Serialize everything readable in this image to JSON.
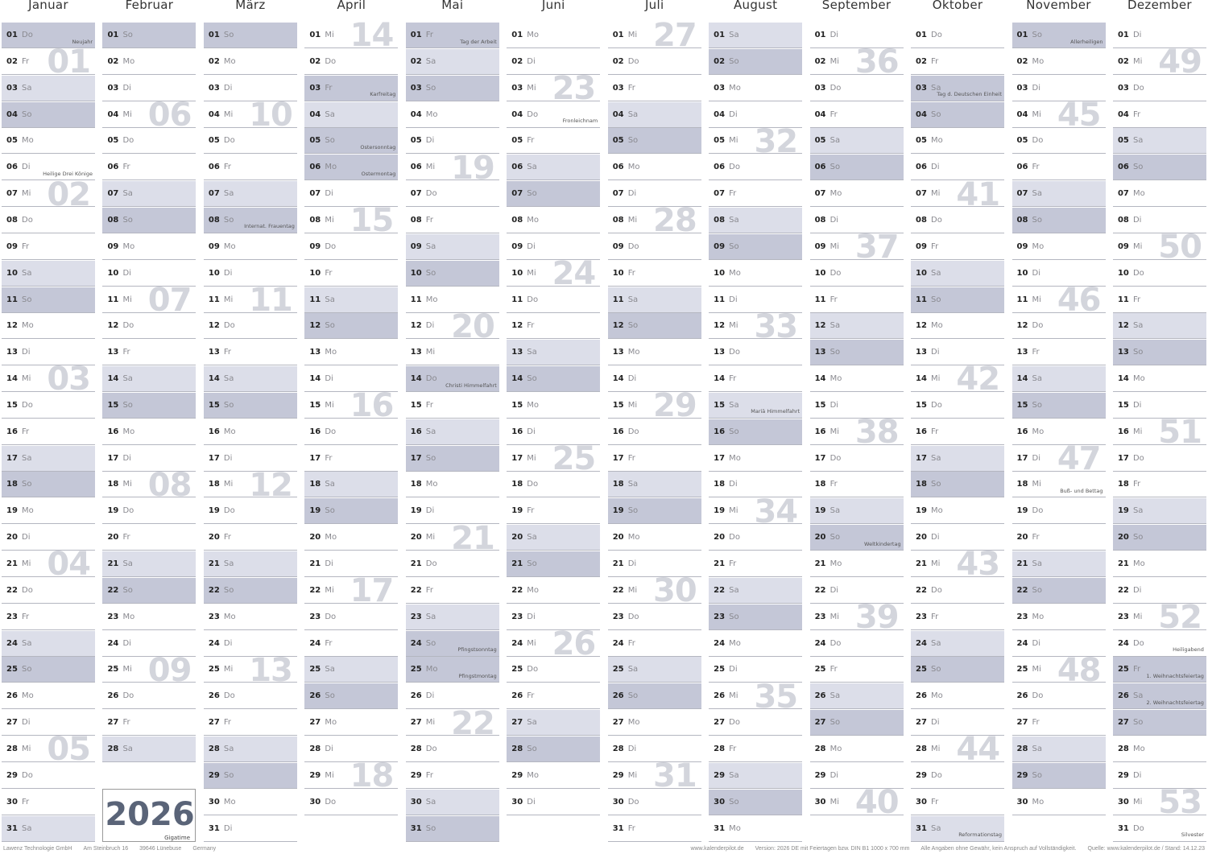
{
  "year": "2026",
  "brand": "Gigatime",
  "colors": {
    "saturday": "#dcdee9",
    "sunday_holiday": "#c4c7d7",
    "week_number": "#d3d5dc",
    "year_text": "#5a6478"
  },
  "months": [
    {
      "name": "Januar",
      "weekdays": [
        "Do",
        "Fr",
        "Sa",
        "So",
        "Mo",
        "Di",
        "Mi",
        "Do",
        "Fr",
        "Sa",
        "So",
        "Mo",
        "Di",
        "Mi",
        "Do",
        "Fr",
        "Sa",
        "So",
        "Mo",
        "Di",
        "Mi",
        "Do",
        "Fr",
        "Sa",
        "So",
        "Mo",
        "Di",
        "Mi",
        "Do",
        "Fr",
        "Sa"
      ],
      "weeks": [
        {
          "week": "01",
          "day": 2
        },
        {
          "week": "02",
          "day": 7
        },
        {
          "week": "03",
          "day": 14
        },
        {
          "week": "04",
          "day": 21
        },
        {
          "week": "05",
          "day": 28
        }
      ],
      "holidays": [
        {
          "day": 1,
          "label": "Neujahr",
          "shaded": true
        },
        {
          "day": 6,
          "label": "Heilige Drei Könige",
          "shaded": false
        }
      ]
    },
    {
      "name": "Februar",
      "weekdays": [
        "So",
        "Mo",
        "Di",
        "Mi",
        "Do",
        "Fr",
        "Sa",
        "So",
        "Mo",
        "Di",
        "Mi",
        "Do",
        "Fr",
        "Sa",
        "So",
        "Mo",
        "Di",
        "Mi",
        "Do",
        "Fr",
        "Sa",
        "So",
        "Mo",
        "Di",
        "Mi",
        "Do",
        "Fr",
        "Sa"
      ],
      "weeks": [
        {
          "week": "06",
          "day": 4
        },
        {
          "week": "07",
          "day": 11
        },
        {
          "week": "08",
          "day": 18
        },
        {
          "week": "09",
          "day": 25
        }
      ],
      "holidays": []
    },
    {
      "name": "März",
      "weekdays": [
        "So",
        "Mo",
        "Di",
        "Mi",
        "Do",
        "Fr",
        "Sa",
        "So",
        "Mo",
        "Di",
        "Mi",
        "Do",
        "Fr",
        "Sa",
        "So",
        "Mo",
        "Di",
        "Mi",
        "Do",
        "Fr",
        "Sa",
        "So",
        "Mo",
        "Di",
        "Mi",
        "Do",
        "Fr",
        "Sa",
        "So",
        "Mo",
        "Di"
      ],
      "weeks": [
        {
          "week": "10",
          "day": 4
        },
        {
          "week": "11",
          "day": 11
        },
        {
          "week": "12",
          "day": 18
        },
        {
          "week": "13",
          "day": 25
        }
      ],
      "holidays": [
        {
          "day": 8,
          "label": "Internat. Frauentag",
          "shaded": false
        }
      ]
    },
    {
      "name": "April",
      "weekdays": [
        "Mi",
        "Do",
        "Fr",
        "Sa",
        "So",
        "Mo",
        "Di",
        "Mi",
        "Do",
        "Fr",
        "Sa",
        "So",
        "Mo",
        "Di",
        "Mi",
        "Do",
        "Fr",
        "Sa",
        "So",
        "Mo",
        "Di",
        "Mi",
        "Do",
        "Fr",
        "Sa",
        "So",
        "Mo",
        "Di",
        "Mi",
        "Do"
      ],
      "weeks": [
        {
          "week": "14",
          "day": 1
        },
        {
          "week": "15",
          "day": 8
        },
        {
          "week": "16",
          "day": 15
        },
        {
          "week": "17",
          "day": 22
        },
        {
          "week": "18",
          "day": 29
        }
      ],
      "holidays": [
        {
          "day": 3,
          "label": "Karfreitag",
          "shaded": true
        },
        {
          "day": 5,
          "label": "Ostersonntag",
          "shaded": true
        },
        {
          "day": 6,
          "label": "Ostermontag",
          "shaded": true
        }
      ]
    },
    {
      "name": "Mai",
      "weekdays": [
        "Fr",
        "Sa",
        "So",
        "Mo",
        "Di",
        "Mi",
        "Do",
        "Fr",
        "Sa",
        "So",
        "Mo",
        "Di",
        "Mi",
        "Do",
        "Fr",
        "Sa",
        "So",
        "Mo",
        "Di",
        "Mi",
        "Do",
        "Fr",
        "Sa",
        "So",
        "Mo",
        "Di",
        "Mi",
        "Do",
        "Fr",
        "Sa",
        "So"
      ],
      "weeks": [
        {
          "week": "19",
          "day": 6
        },
        {
          "week": "20",
          "day": 12
        },
        {
          "week": "21",
          "day": 20
        },
        {
          "week": "22",
          "day": 27
        }
      ],
      "holidays": [
        {
          "day": 1,
          "label": "Tag der Arbeit",
          "shaded": true
        },
        {
          "day": 14,
          "label": "Christi Himmelfahrt",
          "shaded": true
        },
        {
          "day": 24,
          "label": "Pfingstsonntag",
          "shaded": true
        },
        {
          "day": 25,
          "label": "Pfingstmontag",
          "shaded": true
        }
      ]
    },
    {
      "name": "Juni",
      "weekdays": [
        "Mo",
        "Di",
        "Mi",
        "Do",
        "Fr",
        "Sa",
        "So",
        "Mo",
        "Di",
        "Mi",
        "Do",
        "Fr",
        "Sa",
        "So",
        "Mo",
        "Di",
        "Mi",
        "Do",
        "Fr",
        "Sa",
        "So",
        "Mo",
        "Di",
        "Mi",
        "Do",
        "Fr",
        "Sa",
        "So",
        "Mo",
        "Di"
      ],
      "weeks": [
        {
          "week": "23",
          "day": 3
        },
        {
          "week": "24",
          "day": 10
        },
        {
          "week": "25",
          "day": 17
        },
        {
          "week": "26",
          "day": 24
        }
      ],
      "holidays": [
        {
          "day": 4,
          "label": "Fronleichnam",
          "shaded": false
        }
      ]
    },
    {
      "name": "Juli",
      "weekdays": [
        "Mi",
        "Do",
        "Fr",
        "Sa",
        "So",
        "Mo",
        "Di",
        "Mi",
        "Do",
        "Fr",
        "Sa",
        "So",
        "Mo",
        "Di",
        "Mi",
        "Do",
        "Fr",
        "Sa",
        "So",
        "Mo",
        "Di",
        "Mi",
        "Do",
        "Fr",
        "Sa",
        "So",
        "Mo",
        "Di",
        "Mi",
        "Do",
        "Fr"
      ],
      "weeks": [
        {
          "week": "27",
          "day": 1
        },
        {
          "week": "28",
          "day": 8
        },
        {
          "week": "29",
          "day": 15
        },
        {
          "week": "30",
          "day": 22
        },
        {
          "week": "31",
          "day": 29
        }
      ],
      "holidays": []
    },
    {
      "name": "August",
      "weekdays": [
        "Sa",
        "So",
        "Mo",
        "Di",
        "Mi",
        "Do",
        "Fr",
        "Sa",
        "So",
        "Mo",
        "Di",
        "Mi",
        "Do",
        "Fr",
        "Sa",
        "So",
        "Mo",
        "Di",
        "Mi",
        "Do",
        "Fr",
        "Sa",
        "So",
        "Mo",
        "Di",
        "Mi",
        "Do",
        "Fr",
        "Sa",
        "So",
        "Mo"
      ],
      "weeks": [
        {
          "week": "32",
          "day": 5
        },
        {
          "week": "33",
          "day": 12
        },
        {
          "week": "34",
          "day": 19
        },
        {
          "week": "35",
          "day": 26
        }
      ],
      "holidays": [
        {
          "day": 15,
          "label": "Mariä Himmelfahrt",
          "shaded": false
        }
      ]
    },
    {
      "name": "September",
      "weekdays": [
        "Di",
        "Mi",
        "Do",
        "Fr",
        "Sa",
        "So",
        "Mo",
        "Di",
        "Mi",
        "Do",
        "Fr",
        "Sa",
        "So",
        "Mo",
        "Di",
        "Mi",
        "Do",
        "Fr",
        "Sa",
        "So",
        "Mo",
        "Di",
        "Mi",
        "Do",
        "Fr",
        "Sa",
        "So",
        "Mo",
        "Di",
        "Mi"
      ],
      "weeks": [
        {
          "week": "36",
          "day": 2
        },
        {
          "week": "37",
          "day": 9
        },
        {
          "week": "38",
          "day": 16
        },
        {
          "week": "39",
          "day": 23
        },
        {
          "week": "40",
          "day": 30
        }
      ],
      "holidays": [
        {
          "day": 20,
          "label": "Weltkindertag",
          "shaded": false
        }
      ]
    },
    {
      "name": "Oktober",
      "weekdays": [
        "Do",
        "Fr",
        "Sa",
        "So",
        "Mo",
        "Di",
        "Mi",
        "Do",
        "Fr",
        "Sa",
        "So",
        "Mo",
        "Di",
        "Mi",
        "Do",
        "Fr",
        "Sa",
        "So",
        "Mo",
        "Di",
        "Mi",
        "Do",
        "Fr",
        "Sa",
        "So",
        "Mo",
        "Di",
        "Mi",
        "Do",
        "Fr",
        "Sa"
      ],
      "weeks": [
        {
          "week": "41",
          "day": 7
        },
        {
          "week": "42",
          "day": 14
        },
        {
          "week": "43",
          "day": 21
        },
        {
          "week": "44",
          "day": 28
        }
      ],
      "holidays": [
        {
          "day": 3,
          "label": "Tag d. Deutschen Einheit",
          "shaded": true
        },
        {
          "day": 31,
          "label": "Reformationstag",
          "shaded": false
        }
      ]
    },
    {
      "name": "November",
      "weekdays": [
        "So",
        "Mo",
        "Di",
        "Mi",
        "Do",
        "Fr",
        "Sa",
        "So",
        "Mo",
        "Di",
        "Mi",
        "Do",
        "Fr",
        "Sa",
        "So",
        "Mo",
        "Di",
        "Mi",
        "Do",
        "Fr",
        "Sa",
        "So",
        "Mo",
        "Di",
        "Mi",
        "Do",
        "Fr",
        "Sa",
        "So",
        "Mo"
      ],
      "weeks": [
        {
          "week": "45",
          "day": 4
        },
        {
          "week": "46",
          "day": 11
        },
        {
          "week": "47",
          "day": 18
        },
        {
          "week": "48",
          "day": 25
        }
      ],
      "holidays": [
        {
          "day": 1,
          "label": "Allerheiligen",
          "shaded": false
        },
        {
          "day": 18,
          "label": "Buß- und Bettag",
          "shaded": false
        }
      ]
    },
    {
      "name": "Dezember",
      "weekdays": [
        "Di",
        "Mi",
        "Do",
        "Fr",
        "Sa",
        "So",
        "Mo",
        "Di",
        "Mi",
        "Do",
        "Fr",
        "Sa",
        "So",
        "Mo",
        "Di",
        "Mi",
        "Do",
        "Fr",
        "Sa",
        "So",
        "Mo",
        "Di",
        "Mi",
        "Do",
        "Fr",
        "Sa",
        "So",
        "Mo",
        "Di",
        "Mi",
        "Do"
      ],
      "weeks": [
        {
          "week": "49",
          "day": 2
        },
        {
          "week": "50",
          "day": 9
        },
        {
          "week": "51",
          "day": 16
        },
        {
          "week": "52",
          "day": 23
        },
        {
          "week": "53",
          "day": 30
        }
      ],
      "holidays": [
        {
          "day": 24,
          "label": "Heiligabend",
          "shaded": false
        },
        {
          "day": 25,
          "label": "1. Weihnachtsfeiertag",
          "shaded": true
        },
        {
          "day": 26,
          "label": "2. Weihnachtsfeiertag",
          "shaded": true
        },
        {
          "day": 31,
          "label": "Silvester",
          "shaded": false
        }
      ]
    }
  ],
  "footer": {
    "left": [
      "Lawenz Technologie GmbH",
      "Am Steinbruch 16",
      "39646 Lünebuse",
      "Germany"
    ],
    "right": [
      "www.kalenderpilot.de",
      "Version: 2026 DE mit Feiertagen bzw. DIN B1 1000 x 700 mm",
      "Alle Angaben ohne Gewähr, kein Anspruch auf Vollständigkeit.",
      "Quelle: www.kalenderpilot.de / Stand: 14.12.23"
    ]
  }
}
